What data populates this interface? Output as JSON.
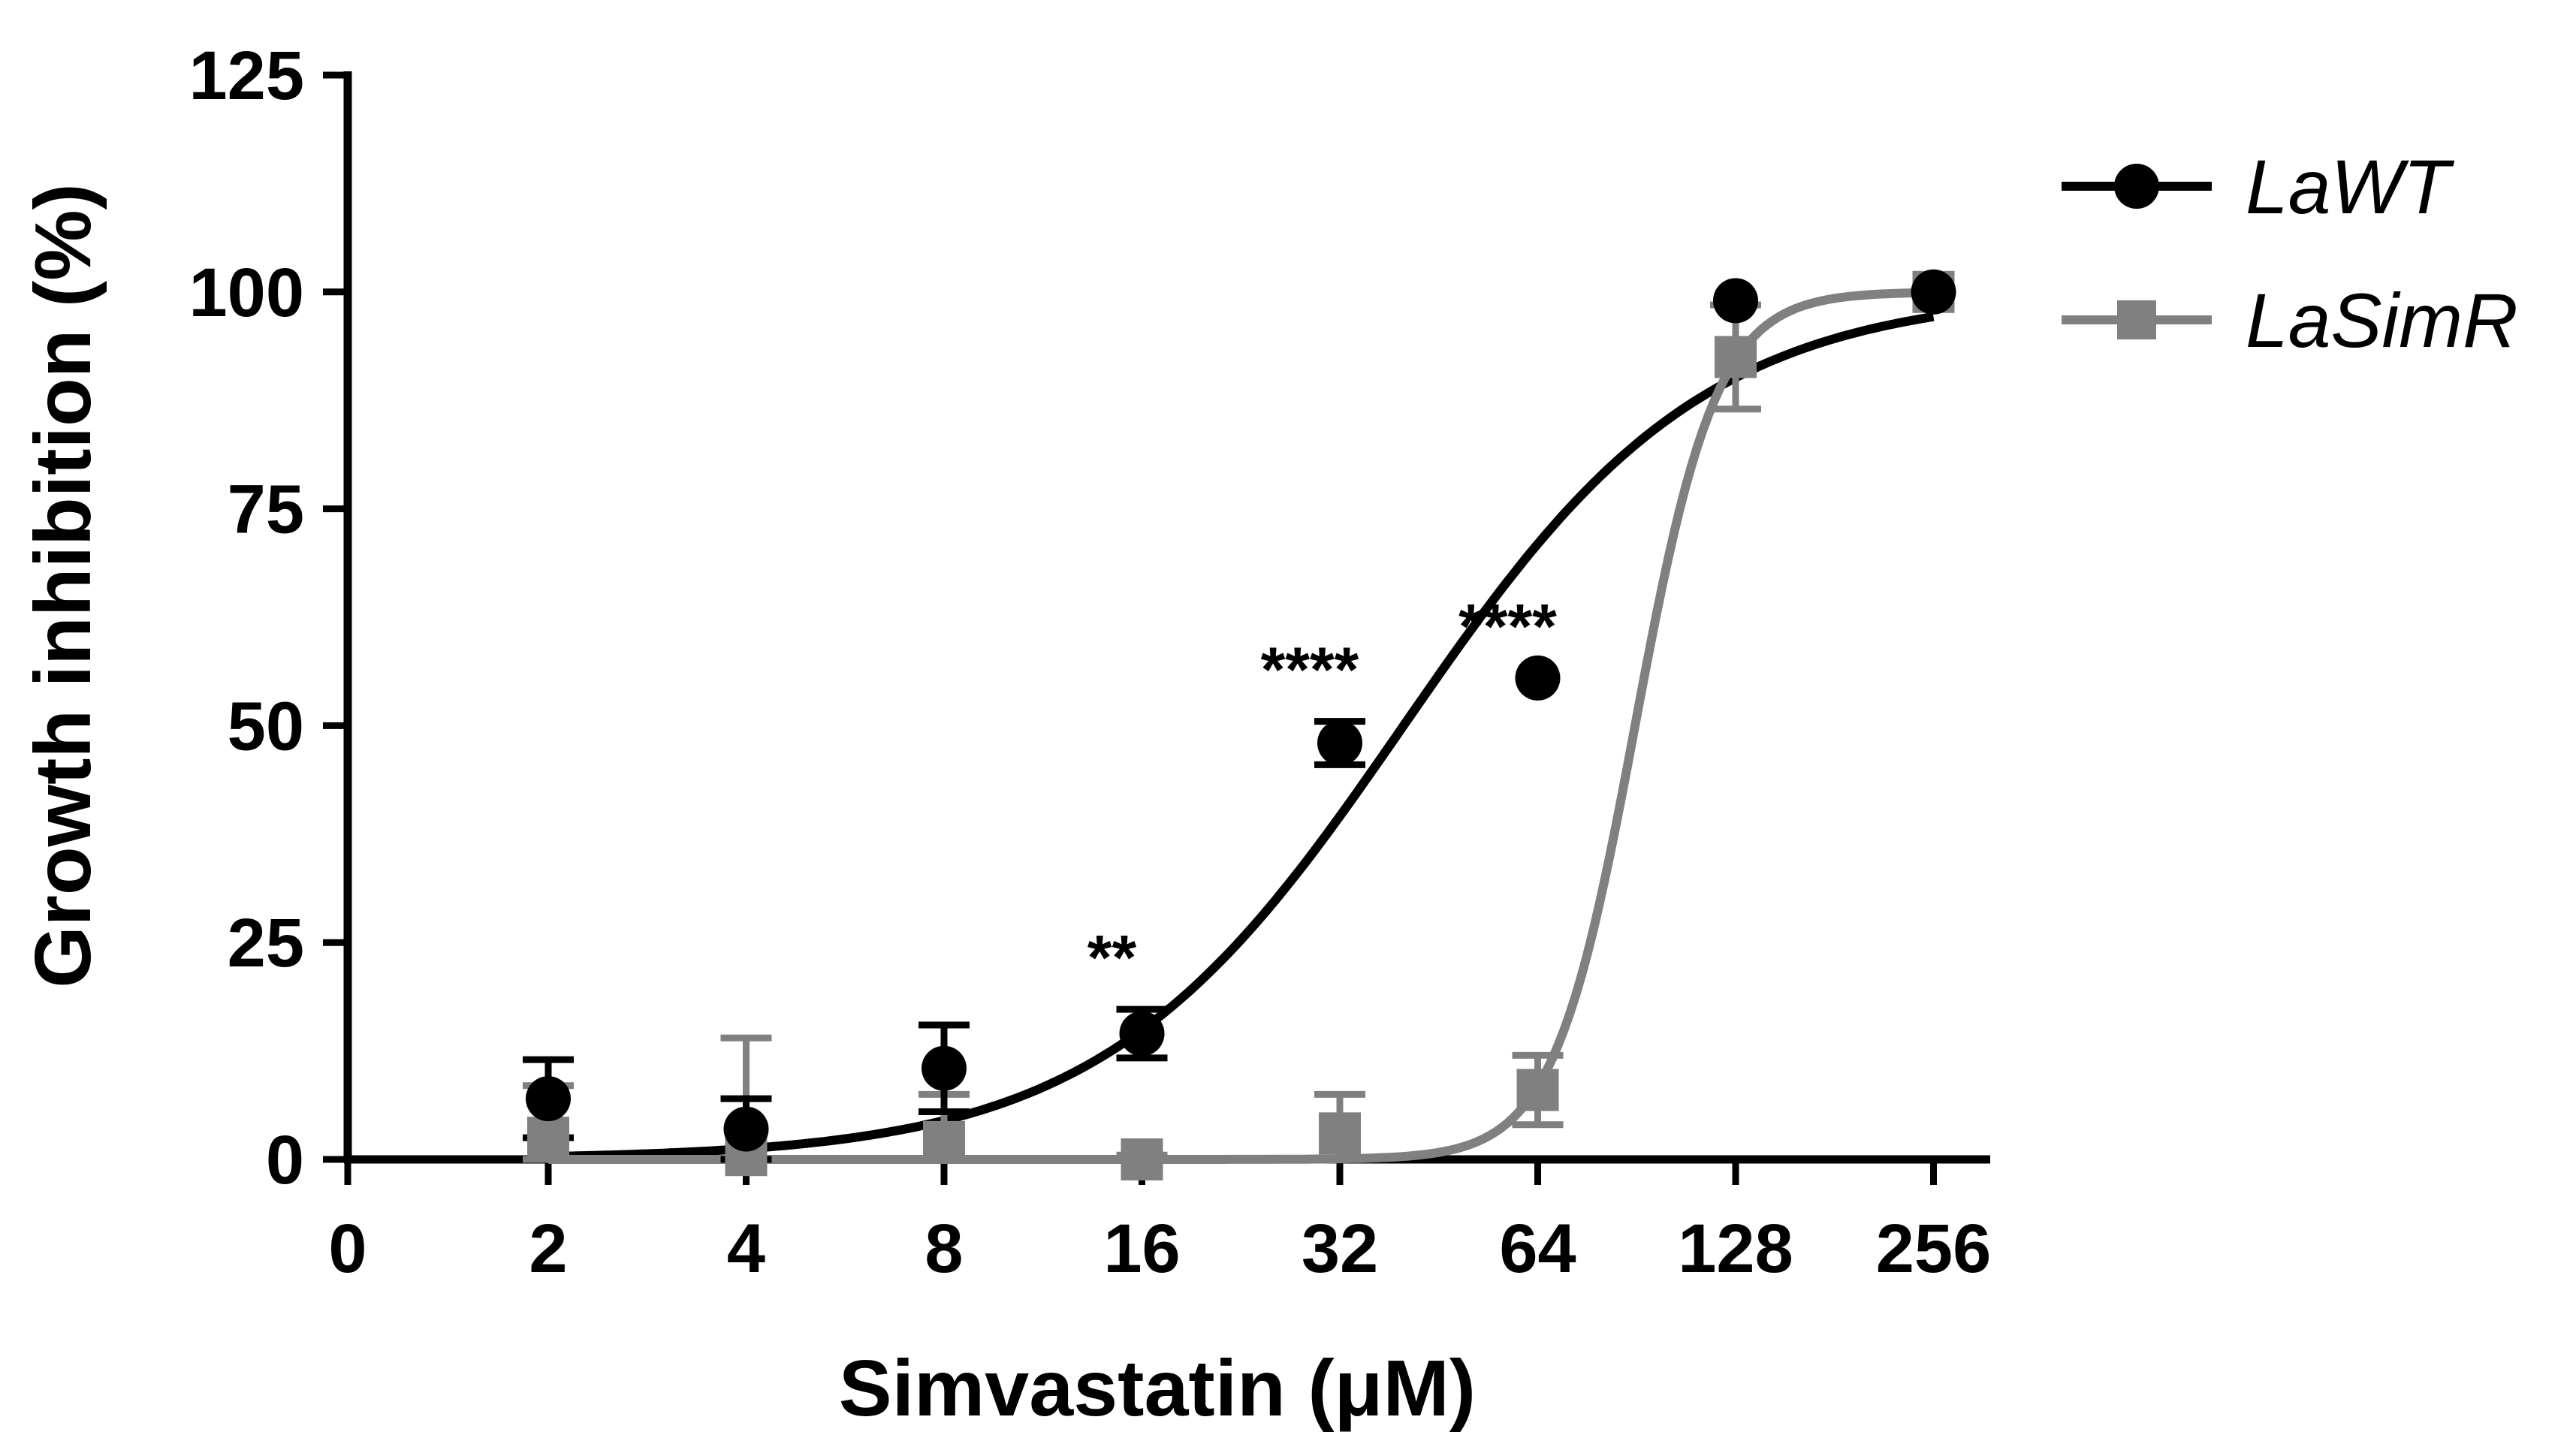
{
  "chart_data": {
    "type": "line",
    "title": "",
    "xlabel": "Simvastatin (μM)",
    "ylabel": "Growth inhibition (%)",
    "x_scale": "log2",
    "x_ticks": [
      0,
      2,
      4,
      8,
      16,
      32,
      64,
      128,
      256
    ],
    "x_tick_labels": [
      "0",
      "2",
      "4",
      "8",
      "16",
      "32",
      "64",
      "128",
      "256"
    ],
    "y_ticks": [
      0,
      25,
      50,
      75,
      100,
      125
    ],
    "y_tick_labels": [
      "0",
      "25",
      "50",
      "75",
      "100",
      "125"
    ],
    "ylim": [
      0,
      125
    ],
    "legend_position": "top-right",
    "series": [
      {
        "name": "LaWT",
        "color": "#000000",
        "marker": "circle",
        "x": [
          2,
          4,
          8,
          16,
          32,
          64,
          128,
          256
        ],
        "y": [
          7,
          3.5,
          10.5,
          14.5,
          48,
          55.5,
          99,
          100
        ],
        "error": [
          4.5,
          3.5,
          5,
          2.8,
          2.5,
          0,
          0,
          0
        ],
        "fit": {
          "bottom": 0,
          "top": 100,
          "ec50": 40,
          "hill": 1.9
        }
      },
      {
        "name": "LaSimR",
        "color": "#808080",
        "marker": "square",
        "x": [
          2,
          4,
          8,
          16,
          32,
          64,
          128,
          256
        ],
        "y": [
          2.5,
          0.5,
          2,
          0,
          3,
          8,
          92.5,
          100
        ],
        "error": [
          6,
          13.5,
          5.5,
          0.5,
          4.5,
          4,
          6,
          0
        ],
        "fit": {
          "bottom": 0,
          "top": 100,
          "ec50": 90,
          "hill": 7
        }
      }
    ],
    "annotations": [
      {
        "x": 16,
        "text": "**",
        "series": "LaWT"
      },
      {
        "x": 32,
        "text": "****",
        "series": "LaWT"
      },
      {
        "x": 64,
        "text": "****",
        "series": "LaWT"
      }
    ]
  }
}
